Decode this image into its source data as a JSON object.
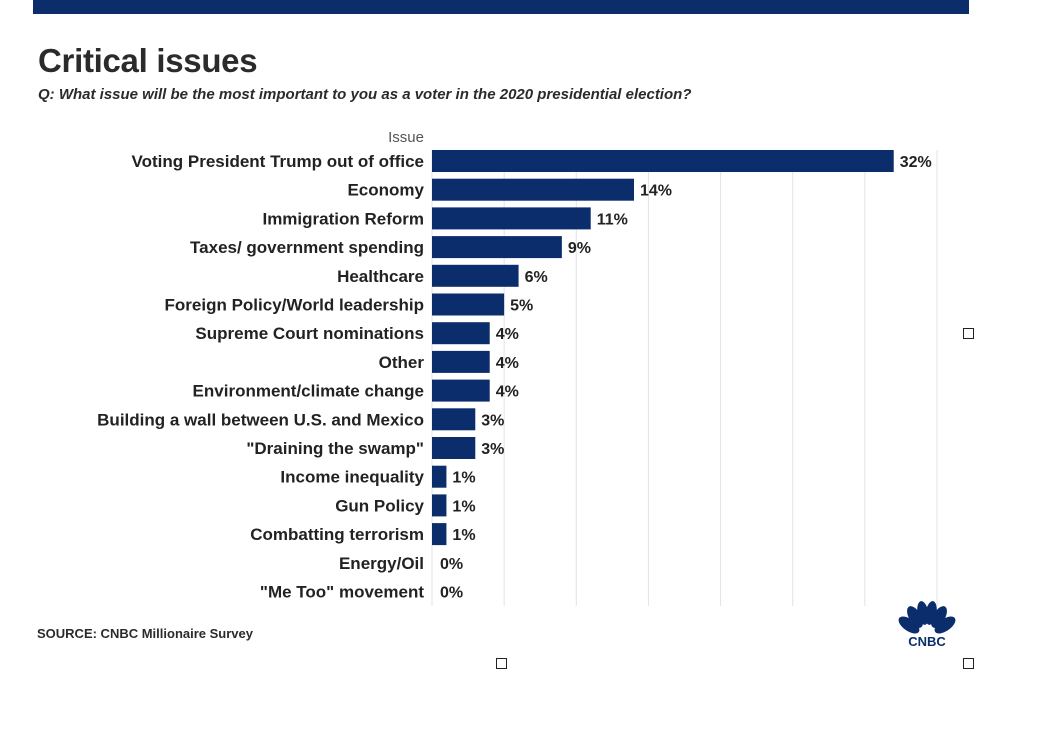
{
  "header": {
    "title": "Critical issues",
    "subtitle": "Q: What issue will be the most important to you as a voter in the 2020 presidential election?"
  },
  "footer": {
    "source": "SOURCE: CNBC Millionaire Survey",
    "logo_text": "CNBC"
  },
  "colors": {
    "bar": "#0b2d6b",
    "top_bar": "#0b2d6b",
    "grid": "#e3e3e3"
  },
  "chart_data": {
    "type": "bar",
    "orientation": "horizontal",
    "category_axis_label": "Issue",
    "categories": [
      "Voting President Trump out of office",
      "Economy",
      "Immigration Reform",
      "Taxes/ government spending",
      "Healthcare",
      "Foreign Policy/World leadership",
      "Supreme Court nominations",
      "Other",
      "Environment/climate change",
      "Building a wall between U.S. and Mexico",
      "\"Draining the swamp\"",
      "Income inequality",
      "Gun Policy",
      "Combatting terrorism",
      "Energy/Oil",
      "\"Me Too\" movement"
    ],
    "values": [
      32,
      14,
      11,
      9,
      6,
      5,
      4,
      4,
      4,
      3,
      3,
      1,
      1,
      1,
      0,
      0
    ],
    "value_labels": [
      "32%",
      "14%",
      "11%",
      "9%",
      "6%",
      "5%",
      "4%",
      "4%",
      "4%",
      "3%",
      "3%",
      "1%",
      "1%",
      "1%",
      "0%",
      "0%"
    ],
    "xlim": [
      0,
      35
    ],
    "grid": true,
    "legend": "none"
  }
}
